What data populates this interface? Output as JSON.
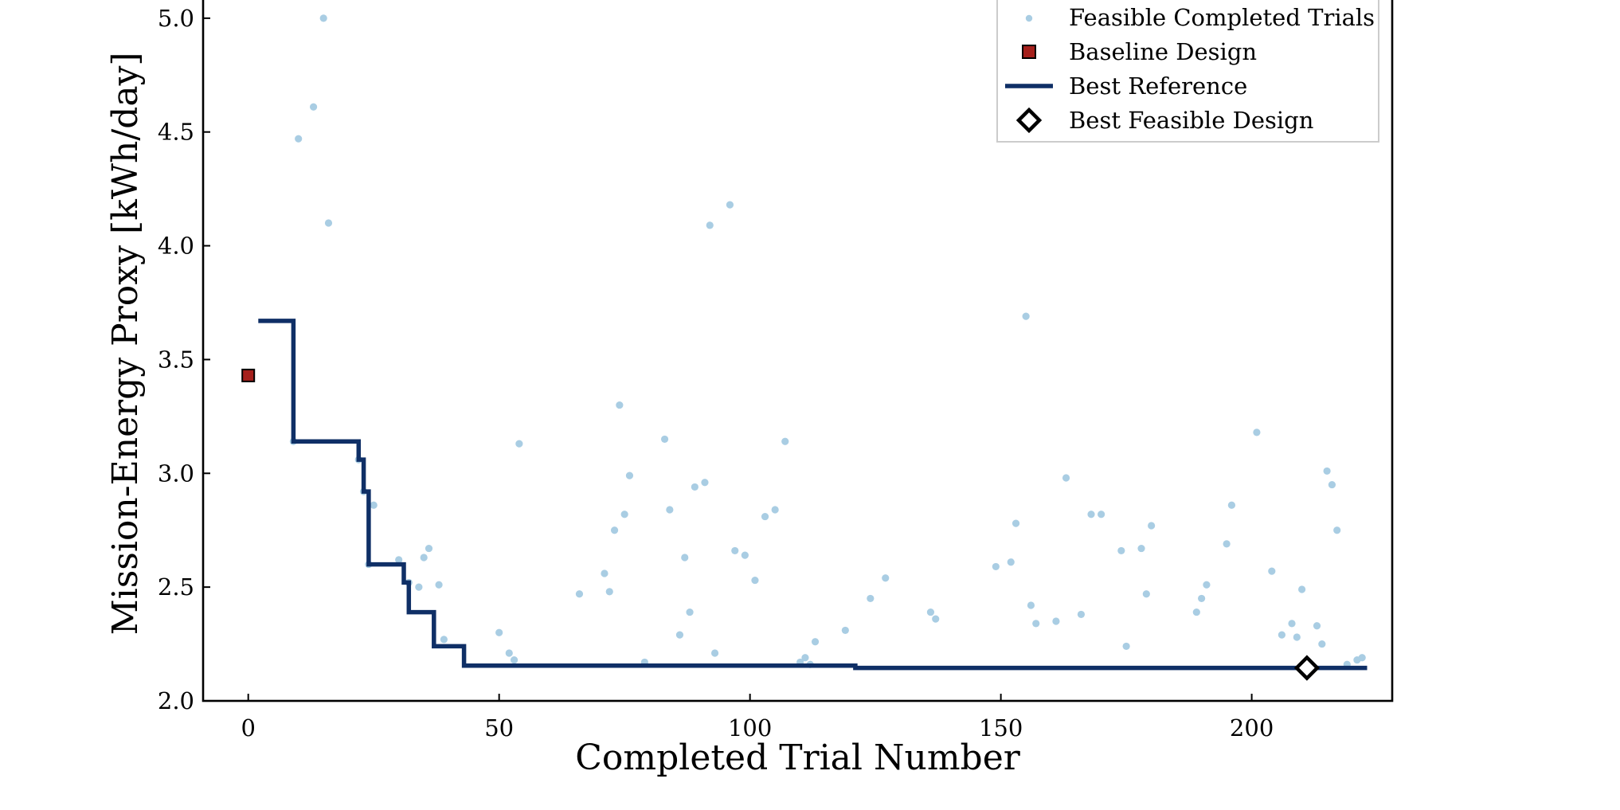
{
  "colors": {
    "feasible": "#a9cde3",
    "baseline_fill": "#a5201c",
    "best_line": "#0f2f66",
    "best_marker": "#000000",
    "legend_border": "#cccccc"
  },
  "chart_data": {
    "type": "scatter",
    "xlabel": "Completed Trial Number",
    "ylabel": "Mission-Energy Proxy [kWh/day]",
    "xlim": [
      -9,
      228
    ],
    "ylim": [
      2.0,
      5.08
    ],
    "xticks": [
      0,
      50,
      100,
      150,
      200
    ],
    "yticks": [
      2.0,
      2.5,
      3.0,
      3.5,
      4.0,
      4.5,
      5.0
    ],
    "grid": false,
    "legend_position": "top-right",
    "legend": [
      {
        "key": "feasible",
        "label": "Feasible Completed Trials"
      },
      {
        "key": "baseline",
        "label": "Baseline Design"
      },
      {
        "key": "best_ref",
        "label": "Best Reference"
      },
      {
        "key": "best_feasible",
        "label": "Best Feasible Design"
      }
    ],
    "series": [
      {
        "name": "Feasible Completed Trials",
        "kind": "scatter",
        "points": [
          [
            10,
            4.47
          ],
          [
            13,
            4.61
          ],
          [
            15,
            5.0
          ],
          [
            16,
            4.1
          ],
          [
            9,
            3.14
          ],
          [
            22,
            3.06
          ],
          [
            23,
            2.92
          ],
          [
            25,
            2.86
          ],
          [
            24,
            2.6
          ],
          [
            30,
            2.62
          ],
          [
            32,
            2.52
          ],
          [
            34,
            2.5
          ],
          [
            35,
            2.63
          ],
          [
            36,
            2.67
          ],
          [
            38,
            2.51
          ],
          [
            39,
            2.27
          ],
          [
            50,
            2.3
          ],
          [
            52,
            2.21
          ],
          [
            53,
            2.18
          ],
          [
            54,
            3.13
          ],
          [
            66,
            2.47
          ],
          [
            71,
            2.56
          ],
          [
            72,
            2.48
          ],
          [
            73,
            2.75
          ],
          [
            74,
            3.3
          ],
          [
            75,
            2.82
          ],
          [
            76,
            2.99
          ],
          [
            79,
            2.17
          ],
          [
            83,
            3.15
          ],
          [
            84,
            2.84
          ],
          [
            86,
            2.29
          ],
          [
            87,
            2.63
          ],
          [
            88,
            2.39
          ],
          [
            89,
            2.94
          ],
          [
            91,
            2.96
          ],
          [
            92,
            4.09
          ],
          [
            93,
            2.21
          ],
          [
            96,
            4.18
          ],
          [
            97,
            2.66
          ],
          [
            99,
            2.64
          ],
          [
            101,
            2.53
          ],
          [
            103,
            2.81
          ],
          [
            105,
            2.84
          ],
          [
            107,
            3.14
          ],
          [
            110,
            2.17
          ],
          [
            111,
            2.19
          ],
          [
            112,
            2.16
          ],
          [
            113,
            2.26
          ],
          [
            119,
            2.31
          ],
          [
            124,
            2.45
          ],
          [
            127,
            2.54
          ],
          [
            136,
            2.39
          ],
          [
            137,
            2.36
          ],
          [
            149,
            2.59
          ],
          [
            152,
            2.61
          ],
          [
            153,
            2.78
          ],
          [
            155,
            3.69
          ],
          [
            156,
            2.42
          ],
          [
            157,
            2.34
          ],
          [
            161,
            2.35
          ],
          [
            163,
            2.98
          ],
          [
            166,
            2.38
          ],
          [
            168,
            2.82
          ],
          [
            170,
            2.82
          ],
          [
            174,
            2.66
          ],
          [
            175,
            2.24
          ],
          [
            178,
            2.67
          ],
          [
            179,
            2.47
          ],
          [
            180,
            2.77
          ],
          [
            189,
            2.39
          ],
          [
            190,
            2.45
          ],
          [
            191,
            2.51
          ],
          [
            195,
            2.69
          ],
          [
            196,
            2.86
          ],
          [
            201,
            3.18
          ],
          [
            204,
            2.57
          ],
          [
            206,
            2.29
          ],
          [
            208,
            2.34
          ],
          [
            209,
            2.28
          ],
          [
            210,
            2.49
          ],
          [
            213,
            2.33
          ],
          [
            214,
            2.25
          ],
          [
            215,
            3.01
          ],
          [
            216,
            2.95
          ],
          [
            217,
            2.75
          ],
          [
            219,
            2.16
          ],
          [
            221,
            2.18
          ],
          [
            222,
            2.19
          ]
        ]
      },
      {
        "name": "Baseline Design",
        "kind": "marker",
        "points": [
          [
            0,
            3.43
          ]
        ]
      },
      {
        "name": "Best Reference",
        "kind": "step",
        "points": [
          [
            2,
            3.67
          ],
          [
            9,
            3.67
          ],
          [
            9,
            3.14
          ],
          [
            22,
            3.14
          ],
          [
            22,
            3.06
          ],
          [
            23,
            3.06
          ],
          [
            23,
            2.92
          ],
          [
            24,
            2.92
          ],
          [
            24,
            2.6
          ],
          [
            31,
            2.6
          ],
          [
            31,
            2.52
          ],
          [
            32,
            2.52
          ],
          [
            32,
            2.39
          ],
          [
            37,
            2.39
          ],
          [
            37,
            2.24
          ],
          [
            43,
            2.24
          ],
          [
            43,
            2.155
          ],
          [
            121,
            2.155
          ],
          [
            121,
            2.145
          ],
          [
            223,
            2.145
          ]
        ]
      },
      {
        "name": "Best Feasible Design",
        "kind": "marker",
        "points": [
          [
            211,
            2.145
          ]
        ]
      }
    ]
  }
}
